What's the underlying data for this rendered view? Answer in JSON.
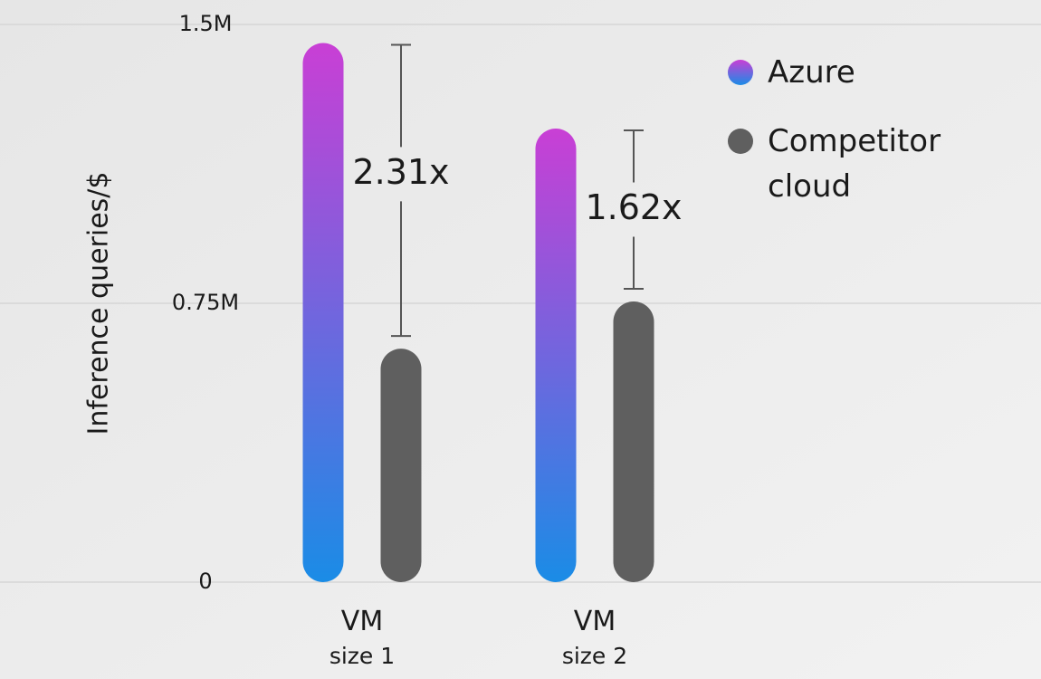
{
  "chart_data": {
    "type": "bar",
    "y_label": "Inference queries/$",
    "categories": [
      "VM size 1",
      "VM size 2"
    ],
    "series": [
      {
        "name": "Azure",
        "color": "#c93fd5",
        "gradient_to": "#1a8ce6",
        "values": [
          1450000,
          1220000
        ]
      },
      {
        "name": "Competitor cloud",
        "color": "#5f5f5f",
        "values": [
          628000,
          755000
        ]
      }
    ],
    "annotations": [
      "2.31x",
      "1.62x"
    ],
    "ylim": [
      0,
      1500000
    ],
    "yticks": [
      0,
      {
        "value": 750000,
        "label": "0.75M"
      },
      {
        "value": 1500000,
        "label": "1.5M"
      }
    ],
    "grid": true
  }
}
